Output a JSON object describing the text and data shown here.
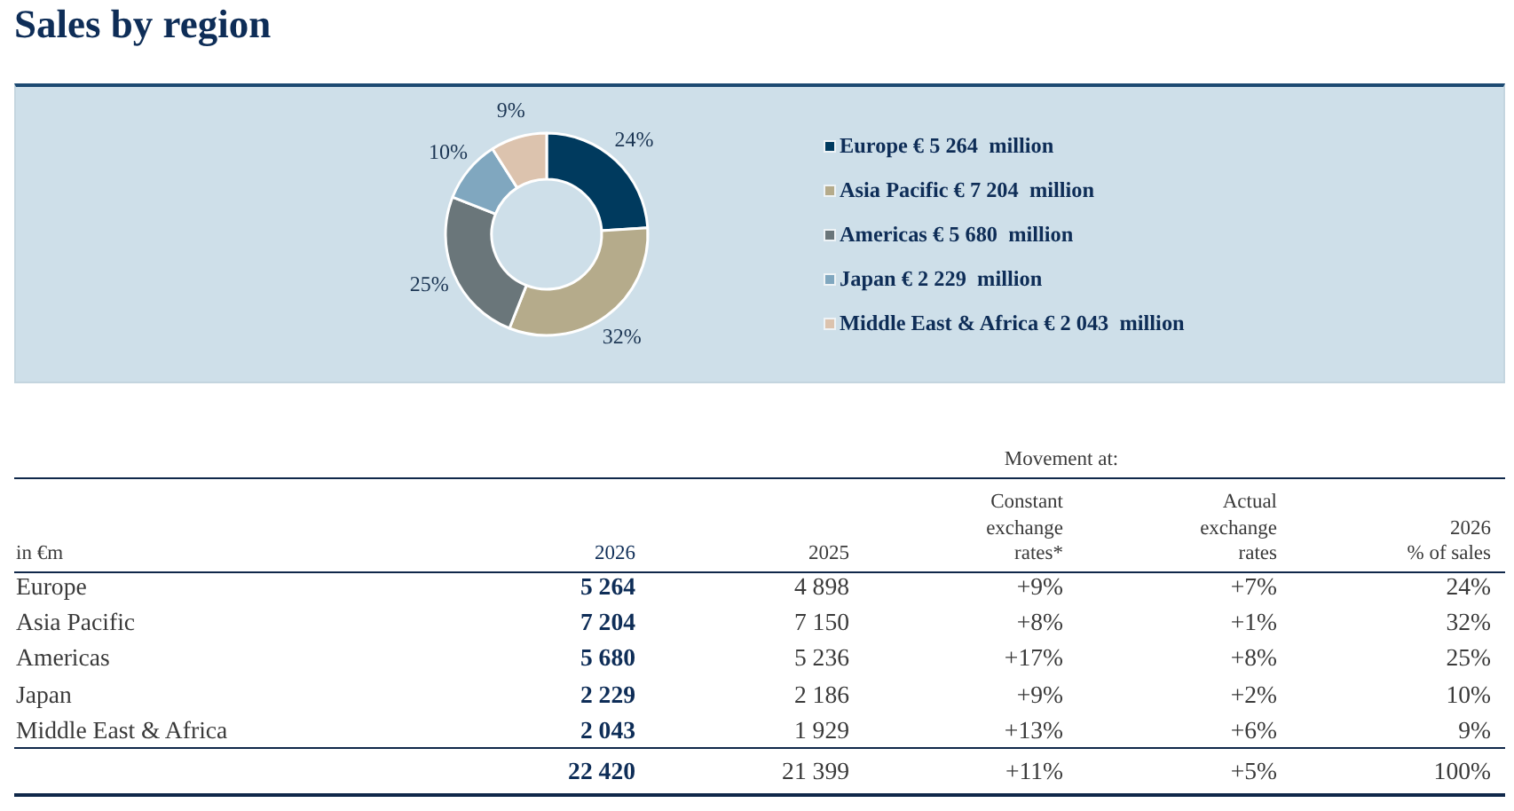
{
  "chart_data": [
    {
      "type": "donut",
      "title": "Sales by region",
      "categories": [
        "Europe € 5 264  million",
        "Asia Pacific € 7 204  million",
        "Americas € 5 680  million",
        "Japan € 2 229  million",
        "Middle East & Africa € 2 043  million"
      ],
      "values": [
        24,
        32,
        25,
        10,
        9
      ],
      "colors": [
        "#003a5e",
        "#b5ab8b",
        "#6a767a",
        "#80a7bf",
        "#dcc3ae"
      ],
      "value_labels": [
        "24%",
        "32%",
        "25%",
        "10%",
        "9%"
      ],
      "legend": "right"
    },
    {
      "type": "other",
      "categories": [
        "Europe",
        "Asia Pacific",
        "Americas",
        "Japan",
        "Middle East & Africa"
      ],
      "series": [
        {
          "name": "2026",
          "color": "#0e2d57",
          "values": [
            5264,
            7204,
            5680,
            2229,
            2043
          ],
          "value_labels": [
            "5 264",
            "7 204",
            "5 680",
            "2 229",
            "2 043"
          ]
        },
        {
          "name": "2025",
          "color": "#3a3a3a",
          "values": [
            4898,
            7150,
            5236,
            2186,
            1929
          ],
          "value_labels": [
            "4 898",
            "7 150",
            "5 236",
            "2 186",
            "1 929"
          ]
        },
        {
          "name": "Constant\nexchange\nrates*",
          "color": "#3a3a3a",
          "values": [
            9,
            8,
            17,
            9,
            13
          ],
          "value_labels": [
            "+9%",
            "+8%",
            "+17%",
            "+9%",
            "+13%"
          ]
        },
        {
          "name": "Actual\nexchange\nrates",
          "color": "#3a3a3a",
          "values": [
            7,
            1,
            8,
            2,
            6
          ],
          "value_labels": [
            "+7%",
            "+1%",
            "+8%",
            "+2%",
            "+6%"
          ]
        },
        {
          "name": "2026\n% of sales",
          "color": "#3a3a3a",
          "values": [
            24,
            32,
            25,
            10,
            9
          ],
          "value_labels": [
            "24%",
            "32%",
            "25%",
            "10%",
            "9%"
          ]
        }
      ],
      "totals": [
        "22 420",
        "21 399",
        "+11%",
        "+5%",
        "100%"
      ],
      "annotations": [
        "in €m",
        "Movement at:"
      ]
    }
  ]
}
